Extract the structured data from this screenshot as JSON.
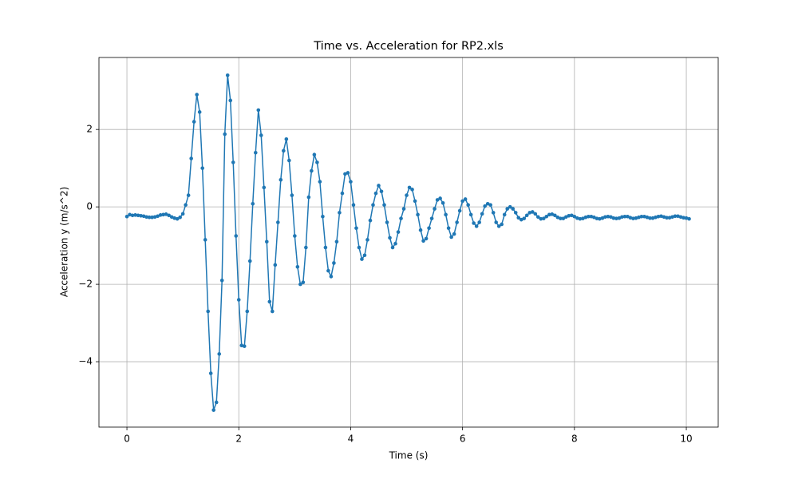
{
  "chart_data": {
    "type": "line",
    "title": "Time vs. Acceleration for RP2.xls",
    "x_label": "Time (s)",
    "y_label": "Acceleration y (m/s^2)",
    "x": [
      0,
      0.05,
      0.1,
      0.15,
      0.2,
      0.25,
      0.3,
      0.35,
      0.4,
      0.45,
      0.5,
      0.55,
      0.6,
      0.65,
      0.7,
      0.75,
      0.8,
      0.85,
      0.9,
      0.95,
      1,
      1.05,
      1.1,
      1.15,
      1.2,
      1.25,
      1.3,
      1.35,
      1.4,
      1.45,
      1.5,
      1.55,
      1.6,
      1.65,
      1.7,
      1.75,
      1.8,
      1.85,
      1.9,
      1.95,
      2,
      2.05,
      2.1,
      2.15,
      2.2,
      2.25,
      2.3,
      2.35,
      2.4,
      2.45,
      2.5,
      2.55,
      2.6,
      2.65,
      2.7,
      2.75,
      2.8,
      2.85,
      2.9,
      2.95,
      3,
      3.05,
      3.1,
      3.15,
      3.2,
      3.25,
      3.3,
      3.35,
      3.4,
      3.45,
      3.5,
      3.55,
      3.6,
      3.65,
      3.7,
      3.75,
      3.8,
      3.85,
      3.9,
      3.95,
      4,
      4.05,
      4.1,
      4.15,
      4.2,
      4.25,
      4.3,
      4.35,
      4.4,
      4.45,
      4.5,
      4.55,
      4.6,
      4.65,
      4.7,
      4.75,
      4.8,
      4.85,
      4.9,
      4.95,
      5,
      5.05,
      5.1,
      5.15,
      5.2,
      5.25,
      5.3,
      5.35,
      5.4,
      5.45,
      5.5,
      5.55,
      5.6,
      5.65,
      5.7,
      5.75,
      5.8,
      5.85,
      5.9,
      5.95,
      6,
      6.05,
      6.1,
      6.15,
      6.2,
      6.25,
      6.3,
      6.35,
      6.4,
      6.45,
      6.5,
      6.55,
      6.6,
      6.65,
      6.7,
      6.75,
      6.8,
      6.85,
      6.9,
      6.95,
      7,
      7.05,
      7.1,
      7.15,
      7.2,
      7.25,
      7.3,
      7.35,
      7.4,
      7.45,
      7.5,
      7.55,
      7.6,
      7.65,
      7.7,
      7.75,
      7.8,
      7.85,
      7.9,
      7.95,
      8,
      8.05,
      8.1,
      8.15,
      8.2,
      8.25,
      8.3,
      8.35,
      8.4,
      8.45,
      8.5,
      8.55,
      8.6,
      8.65,
      8.7,
      8.75,
      8.8,
      8.85,
      8.9,
      8.95,
      9,
      9.05,
      9.1,
      9.15,
      9.2,
      9.25,
      9.3,
      9.35,
      9.4,
      9.45,
      9.5,
      9.55,
      9.6,
      9.65,
      9.7,
      9.75,
      9.8,
      9.85,
      9.9,
      9.95,
      10,
      10.05
    ],
    "series": [
      {
        "color": "#1f77b4",
        "values": [
          -0.25,
          -0.2,
          -0.22,
          -0.21,
          -0.22,
          -0.23,
          -0.24,
          -0.26,
          -0.27,
          -0.27,
          -0.26,
          -0.24,
          -0.21,
          -0.2,
          -0.19,
          -0.22,
          -0.26,
          -0.29,
          -0.31,
          -0.27,
          -0.18,
          0.05,
          0.3,
          1.25,
          2.2,
          2.9,
          2.45,
          1.0,
          -0.85,
          -2.7,
          -4.3,
          -5.25,
          -5.05,
          -3.8,
          -1.9,
          1.88,
          3.4,
          2.75,
          1.15,
          -0.75,
          -2.4,
          -3.58,
          -3.6,
          -2.7,
          -1.4,
          0.08,
          1.4,
          2.5,
          1.85,
          0.5,
          -0.9,
          -2.45,
          -2.7,
          -1.5,
          -0.4,
          0.7,
          1.45,
          1.75,
          1.2,
          0.3,
          -0.75,
          -1.55,
          -2.0,
          -1.95,
          -1.05,
          0.25,
          0.93,
          1.35,
          1.15,
          0.65,
          -0.25,
          -1.05,
          -1.65,
          -1.8,
          -1.45,
          -0.9,
          -0.15,
          0.35,
          0.85,
          0.88,
          0.65,
          0.05,
          -0.55,
          -1.05,
          -1.35,
          -1.25,
          -0.85,
          -0.35,
          0.05,
          0.35,
          0.55,
          0.4,
          0.05,
          -0.4,
          -0.8,
          -1.05,
          -0.95,
          -0.65,
          -0.3,
          -0.05,
          0.3,
          0.5,
          0.45,
          0.15,
          -0.2,
          -0.6,
          -0.88,
          -0.82,
          -0.55,
          -0.3,
          -0.05,
          0.18,
          0.22,
          0.1,
          -0.2,
          -0.55,
          -0.78,
          -0.7,
          -0.4,
          -0.1,
          0.15,
          0.2,
          0.05,
          -0.2,
          -0.42,
          -0.5,
          -0.4,
          -0.18,
          0.02,
          0.08,
          0.05,
          -0.15,
          -0.4,
          -0.5,
          -0.45,
          -0.2,
          -0.05,
          0.0,
          -0.05,
          -0.15,
          -0.28,
          -0.33,
          -0.3,
          -0.22,
          -0.15,
          -0.13,
          -0.18,
          -0.26,
          -0.31,
          -0.3,
          -0.25,
          -0.2,
          -0.19,
          -0.22,
          -0.27,
          -0.3,
          -0.3,
          -0.26,
          -0.23,
          -0.22,
          -0.25,
          -0.29,
          -0.31,
          -0.3,
          -0.27,
          -0.25,
          -0.25,
          -0.27,
          -0.3,
          -0.31,
          -0.29,
          -0.26,
          -0.25,
          -0.26,
          -0.29,
          -0.3,
          -0.29,
          -0.26,
          -0.25,
          -0.25,
          -0.28,
          -0.3,
          -0.29,
          -0.27,
          -0.25,
          -0.25,
          -0.27,
          -0.29,
          -0.29,
          -0.27,
          -0.25,
          -0.24,
          -0.26,
          -0.28,
          -0.28,
          -0.26,
          -0.24,
          -0.24,
          -0.26,
          -0.28,
          -0.29,
          -0.31
        ]
      }
    ],
    "xlim": [
      -0.5,
      10.57
    ],
    "ylim": [
      -5.69,
      3.86
    ],
    "xticks": [
      0,
      2,
      4,
      6,
      8,
      10
    ],
    "yticks": [
      {
        "value": -4,
        "label": "−4"
      },
      {
        "value": -2,
        "label": "−2"
      },
      0,
      2
    ],
    "grid": true
  }
}
